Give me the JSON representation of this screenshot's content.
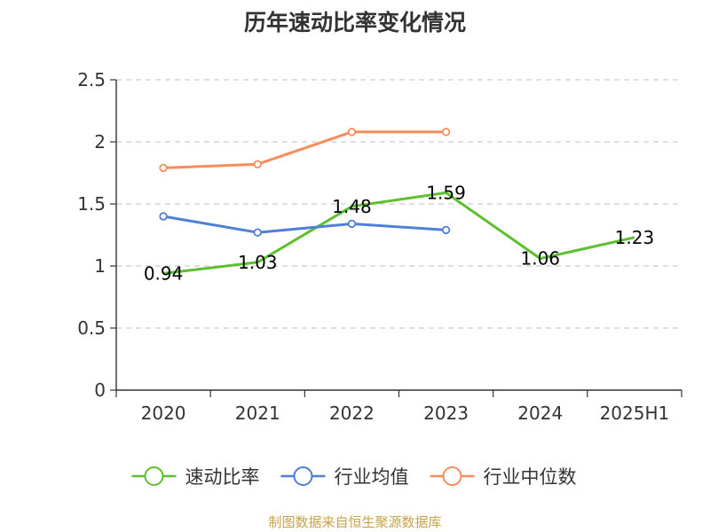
{
  "source_note": "制图数据来自恒生聚源数据库",
  "chart_data": {
    "type": "line",
    "title": "历年速动比率变化情况",
    "xlabel": "",
    "ylabel": "",
    "categories": [
      "2020",
      "2021",
      "2022",
      "2023",
      "2024",
      "2025H1"
    ],
    "ylim": [
      0,
      2.5
    ],
    "yticks": [
      0,
      0.5,
      1,
      1.5,
      2,
      2.5
    ],
    "ytick_labels": [
      "0",
      "0.5",
      "1",
      "1.5",
      "2",
      "2.5"
    ],
    "grid": true,
    "legend_position": "bottom",
    "series": [
      {
        "name": "速动比率",
        "color": "#5cc02e",
        "values": [
          0.94,
          1.03,
          1.48,
          1.59,
          1.06,
          1.23
        ],
        "data_labels": [
          "0.94",
          "1.03",
          "1.48",
          "1.59",
          "1.06",
          "1.23"
        ],
        "show_markers": false
      },
      {
        "name": "行业均值",
        "color": "#4f7fd6",
        "values": [
          1.4,
          1.27,
          1.34,
          1.29,
          null,
          null
        ],
        "show_markers": true
      },
      {
        "name": "行业中位数",
        "color": "#f98c5b",
        "values": [
          1.79,
          1.82,
          2.08,
          2.08,
          null,
          null
        ],
        "show_markers": true
      }
    ]
  }
}
